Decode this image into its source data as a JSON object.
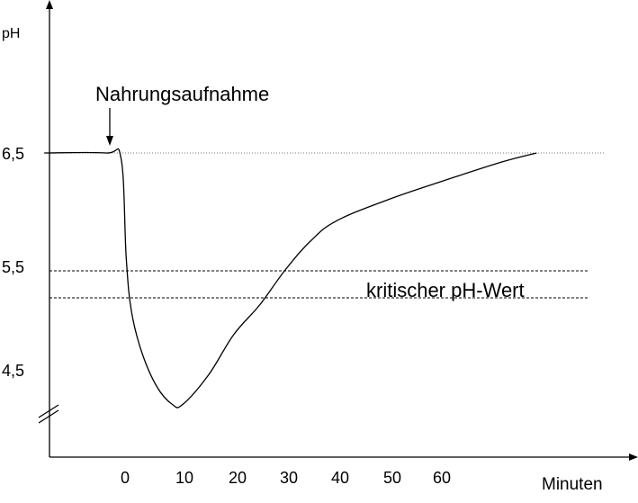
{
  "chart_data": {
    "type": "line",
    "title": "",
    "ylabel": "pH",
    "xlabel": "Minuten",
    "xticks": [
      "0",
      "10",
      "20",
      "30",
      "40",
      "50",
      "60"
    ],
    "yticks": [
      "6,5",
      "5,5",
      "4,5"
    ],
    "y_axis_break": true,
    "grid": false,
    "legend": "none",
    "annotations": {
      "meal": "Nahrungsaufnahme",
      "critical": "kritischer pH-Wert"
    },
    "reference_lines": {
      "baseline_ph": 6.5,
      "critical_upper_ph": 5.5,
      "critical_lower_ph": 5.3
    },
    "series": [
      {
        "x": [
          -17,
          -5,
          -2,
          -1,
          0,
          2,
          5,
          8,
          10,
          15,
          20,
          25,
          30,
          35,
          40,
          50,
          60,
          72,
          79
        ],
        "y": [
          6.5,
          6.5,
          6.45,
          5.6,
          5.15,
          4.8,
          4.5,
          4.35,
          4.35,
          4.6,
          4.95,
          5.2,
          5.5,
          5.75,
          5.92,
          6.1,
          6.25,
          6.42,
          6.5
        ]
      }
    ],
    "colors": {
      "line": "#000000",
      "axis": "#000000",
      "reference": "#555555"
    }
  }
}
